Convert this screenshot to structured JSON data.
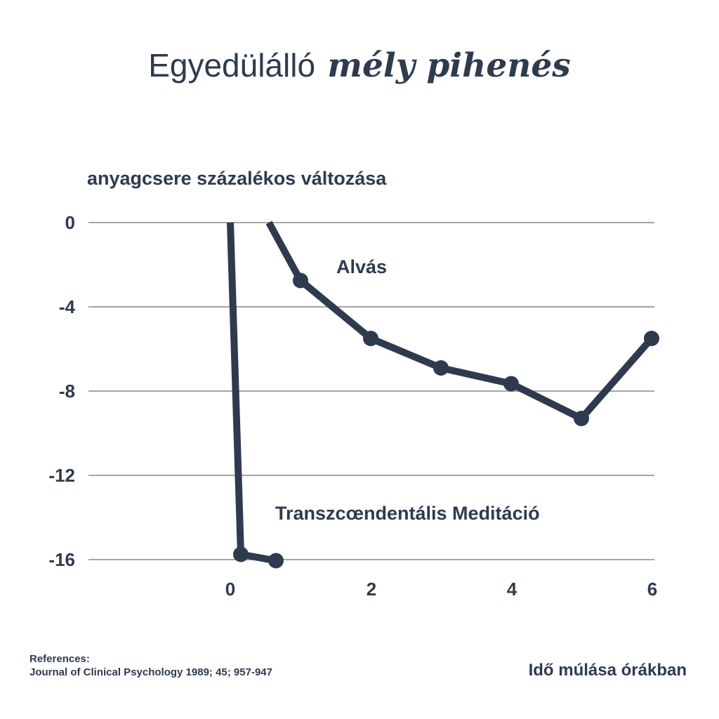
{
  "title": {
    "regular": "Egyedülálló",
    "italic": "mély pihenés"
  },
  "colors": {
    "ink": "#2e3b4e",
    "grid": "#a5a5a5",
    "background": "#ffffff"
  },
  "references": {
    "heading": "References:",
    "citation": "Journal of Clinical Psychology 1989; 45; 957-947"
  },
  "chart_data": {
    "type": "line",
    "title": "Egyedülálló mély pihenés",
    "ylabel": "anyagcsere százalékos változása",
    "xlabel": "Idő múlása órákban",
    "xticks": [
      0,
      2,
      4,
      6
    ],
    "yticks": [
      0,
      -4,
      -8,
      -12,
      -16
    ],
    "xtick_labels": [
      "0",
      "2",
      "4",
      "6"
    ],
    "ytick_labels": [
      "0",
      "-4",
      "-8",
      "-12",
      "-16"
    ],
    "xlim": [
      -2,
      6.05
    ],
    "ylim": [
      -17.5,
      0.5
    ],
    "grid": "horizontal-only",
    "legend": "inline-annotations",
    "series": [
      {
        "name": "Alvás",
        "points": [
          [
            0.55,
            0
          ],
          [
            1,
            -2.75
          ],
          [
            2,
            -5.5
          ],
          [
            3,
            -6.9
          ],
          [
            4,
            -7.65
          ],
          [
            5,
            -9.3
          ],
          [
            6,
            -5.5
          ]
        ],
        "marker_points": [
          [
            1,
            -2.75
          ],
          [
            2,
            -5.5
          ],
          [
            3,
            -6.9
          ],
          [
            4,
            -7.65
          ],
          [
            5,
            -9.3
          ],
          [
            6,
            -5.5
          ]
        ]
      },
      {
        "name": "Transzcœndentális Meditáció",
        "points": [
          [
            0,
            0
          ],
          [
            0.15,
            -15.75
          ],
          [
            0.65,
            -16.05
          ]
        ],
        "marker_points": [
          [
            0.15,
            -15.75
          ],
          [
            0.65,
            -16.05
          ]
        ]
      }
    ]
  }
}
